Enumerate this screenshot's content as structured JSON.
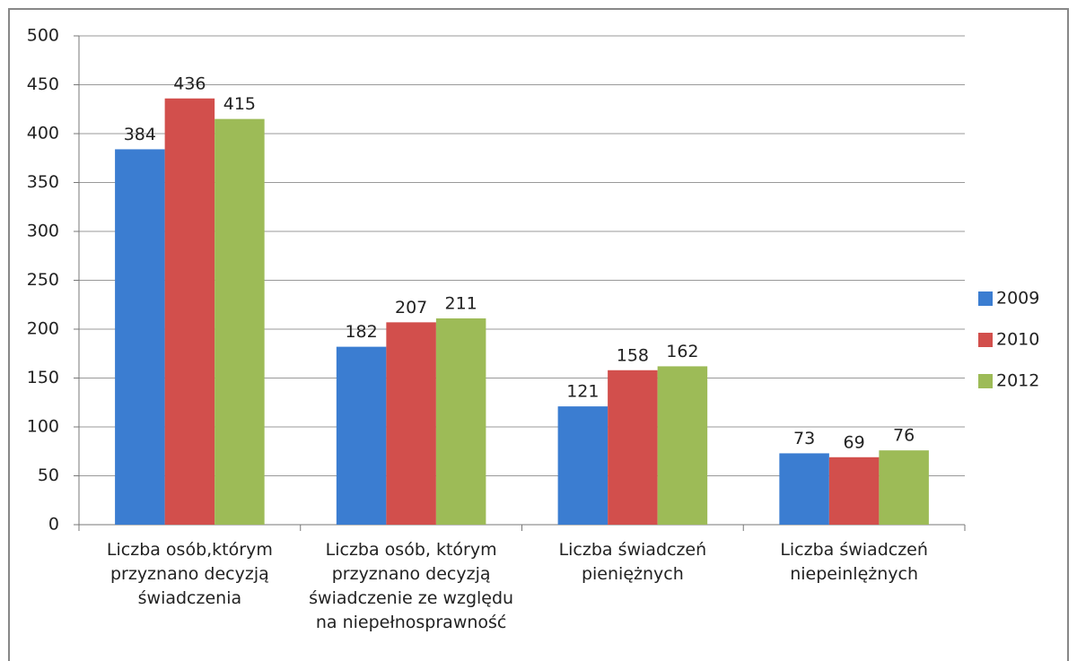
{
  "chart_data": {
    "type": "bar",
    "categories": [
      "Liczba osób,którym\nprzyznano decyzją\nświadczenia",
      "Liczba osób, którym\nprzyznano decyzją\nświadczenie ze względu\nna niepełnosprawność",
      "Liczba świadczeń\npieniężnych",
      "Liczba świadczeń\nniepeinlężnych"
    ],
    "series": [
      {
        "name": "2009",
        "color": "#3b7dd1",
        "values": [
          384,
          182,
          121,
          73
        ]
      },
      {
        "name": "2010",
        "color": "#d24f4c",
        "values": [
          436,
          207,
          158,
          69
        ]
      },
      {
        "name": "2012",
        "color": "#9dbb57",
        "values": [
          415,
          211,
          162,
          76
        ]
      }
    ],
    "ylim": [
      0,
      500
    ],
    "yticks": [
      0,
      50,
      100,
      150,
      200,
      250,
      300,
      350,
      400,
      450,
      500
    ],
    "grid": true,
    "legend": "right"
  }
}
